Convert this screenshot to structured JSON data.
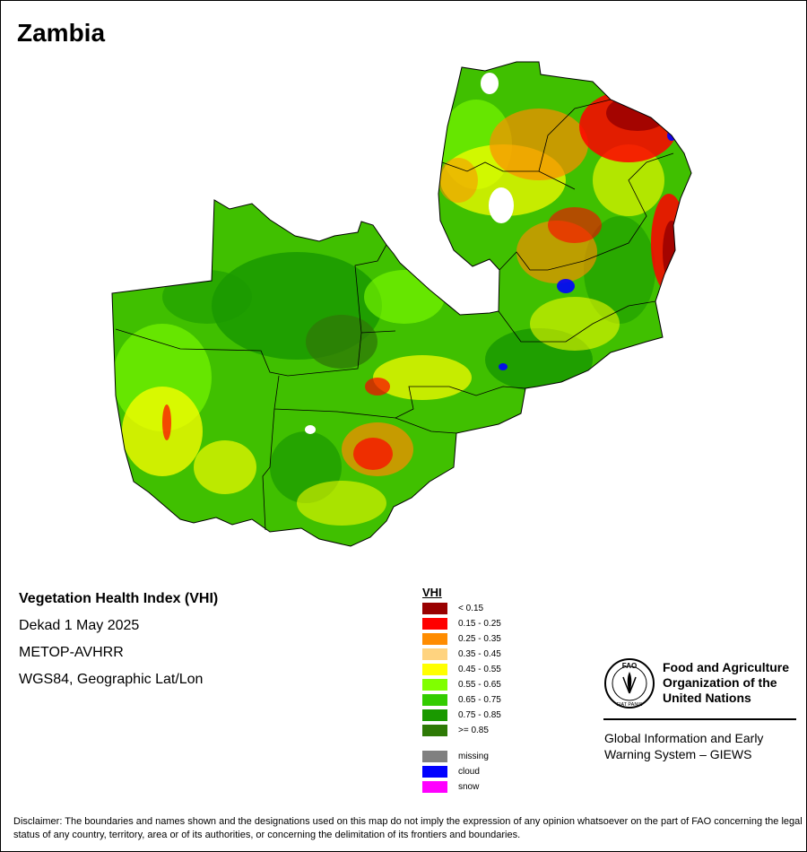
{
  "map_title": "Zambia",
  "info": {
    "product": "Vegetation Health Index (VHI)",
    "period": "Dekad 1 May 2025",
    "sensor": "METOP-AVHRR",
    "projection": "WGS84, Geographic Lat/Lon"
  },
  "legend": {
    "title": "VHI",
    "classes": [
      {
        "label": "< 0.15",
        "color": "#990000"
      },
      {
        "label": "0.15 - 0.25",
        "color": "#ff0000"
      },
      {
        "label": "0.25 - 0.35",
        "color": "#ff8c00"
      },
      {
        "label": "0.35 - 0.45",
        "color": "#ffd37f"
      },
      {
        "label": "0.45 - 0.55",
        "color": "#ffff00"
      },
      {
        "label": "0.55 - 0.65",
        "color": "#80ff00"
      },
      {
        "label": "0.65 - 0.75",
        "color": "#33cc00"
      },
      {
        "label": "0.75 - 0.85",
        "color": "#1a9900"
      },
      {
        "label": ">= 0.85",
        "color": "#2e7a06"
      }
    ],
    "other": [
      {
        "label": "missing",
        "color": "#808080"
      },
      {
        "label": "cloud",
        "color": "#0000ff"
      },
      {
        "label": "snow",
        "color": "#ff00ff"
      }
    ]
  },
  "logo": {
    "org_name": "Food and Agriculture\nOrganization of the\nUnited Nations",
    "emblem_letters": "FAO",
    "emblem_motto": "FIAT PANIS",
    "giews": "Global Information and Early\nWarning System – GIEWS"
  },
  "disclaimer": "Disclaimer: The boundaries and names shown and the designations used on this map do not imply the expression of any opinion whatsoever on the part of FAO concerning the legal status of any country, territory, area or of its authorities, or concerning the delimitation of its frontiers and boundaries."
}
